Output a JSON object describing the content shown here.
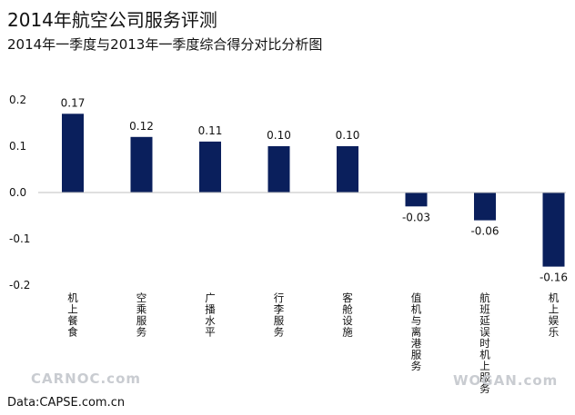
{
  "title": "2014年航空公司服务评测",
  "subtitle": "2014年一季度与2013年一季度综合得分对比分析图",
  "source": "Data:CAPSE.com.cn",
  "watermarks": {
    "left": "CARNOC.com",
    "right": "WOGAN.com"
  },
  "colors": {
    "bar": "#0a1f5c",
    "axis": "#bfbfbf"
  },
  "chart_data": {
    "type": "bar",
    "title": "2014年航空公司服务评测",
    "subtitle": "2014年一季度与2013年一季度综合得分对比分析图",
    "categories": [
      "机上餐食",
      "空乘服务",
      "广播水平",
      "行李服务",
      "客舱设施",
      "值机与离港服务",
      "航班延误时机上服务",
      "机上娱乐"
    ],
    "values": [
      0.17,
      0.12,
      0.11,
      0.1,
      0.1,
      -0.03,
      -0.06,
      -0.16
    ],
    "value_labels": [
      "0.17",
      "0.12",
      "0.11",
      "0.10",
      "0.10",
      "-0.03",
      "-0.06",
      "-0.16"
    ],
    "yticks": [
      0.2,
      0.1,
      0.0,
      -0.1,
      -0.2
    ],
    "ytick_labels": [
      "0.2",
      "0.1",
      "0.0",
      "-0.1",
      "-0.2"
    ],
    "ylim": [
      -0.2,
      0.2
    ],
    "xlabel": "",
    "ylabel": "",
    "grid": false,
    "legend": "none"
  }
}
